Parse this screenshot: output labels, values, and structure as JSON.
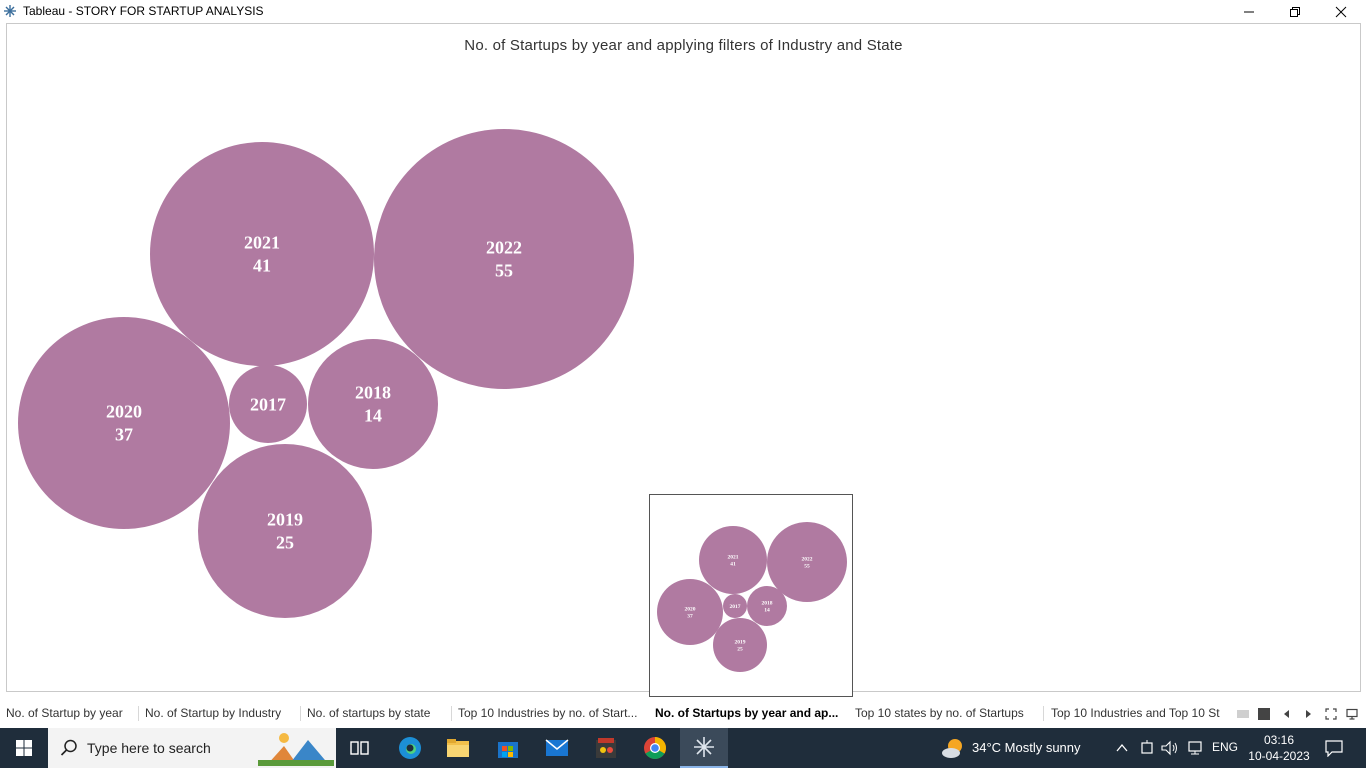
{
  "window": {
    "title": "Tableau - STORY  FOR STARTUP ANALYSIS"
  },
  "chart_data": {
    "type": "packed-bubble",
    "title": "No. of Startups by year and applying filters of Industry and State",
    "color": "#b07aa1",
    "items": [
      {
        "year": "2021",
        "count": "41"
      },
      {
        "year": "2022",
        "count": "55"
      },
      {
        "year": "2020",
        "count": "37"
      },
      {
        "year": "2017",
        "count": ""
      },
      {
        "year": "2018",
        "count": "14"
      },
      {
        "year": "2019",
        "count": "25"
      }
    ]
  },
  "story_tabs": [
    {
      "label": "No. of Startup by year",
      "active": false
    },
    {
      "label": "No. of Startup by Industry",
      "active": false
    },
    {
      "label": "No. of startups by state",
      "active": false
    },
    {
      "label": "Top 10 Industries by no. of Start...",
      "active": false
    },
    {
      "label": "No. of Startups by year and ap...",
      "active": true
    },
    {
      "label": "Top 10 states by no. of Startups",
      "active": false
    },
    {
      "label": "Top 10 Industries and Top 10 St",
      "active": false
    }
  ],
  "taskbar": {
    "search_placeholder": "Type here to search",
    "weather": "34°C  Mostly sunny",
    "language": "ENG",
    "time": "03:16",
    "date": "10-04-2023",
    "apps": [
      "task-view-icon",
      "edge-icon",
      "file-explorer-icon",
      "store-icon",
      "mail-icon",
      "media-app-icon",
      "chrome-icon",
      "tableau-icon"
    ]
  }
}
